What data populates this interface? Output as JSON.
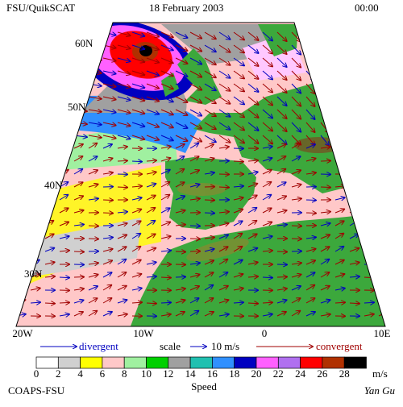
{
  "header": {
    "left": "FSU/QuikSCAT",
    "date": "18 February 2003",
    "time": "00:00"
  },
  "map": {
    "lat_labels": [
      "60N",
      "50N",
      "40N",
      "30N"
    ],
    "lon_labels": [
      "20W",
      "10W",
      "0",
      "10E"
    ]
  },
  "legend": {
    "divergent": "divergent",
    "scale": "scale",
    "scale_value": "10 m/s",
    "convergent": "convergent"
  },
  "speed_scale": {
    "ticks": [
      0,
      2,
      4,
      6,
      8,
      10,
      12,
      14,
      16,
      18,
      20,
      22,
      24,
      26,
      28
    ],
    "colors": [
      "#ffffff",
      "#d0d0d0",
      "#ffff00",
      "#ffc8c8",
      "#a0f0a0",
      "#00d000",
      "#a0a0a0",
      "#20c0b0",
      "#3090ff",
      "#0000c0",
      "#ff60ff",
      "#b070f0",
      "#ff0000",
      "#b03000",
      "#000000"
    ],
    "unit": "m/s",
    "title": "Speed"
  },
  "footer": {
    "left": "COAPS-FSU",
    "right": "Yan Gu"
  }
}
